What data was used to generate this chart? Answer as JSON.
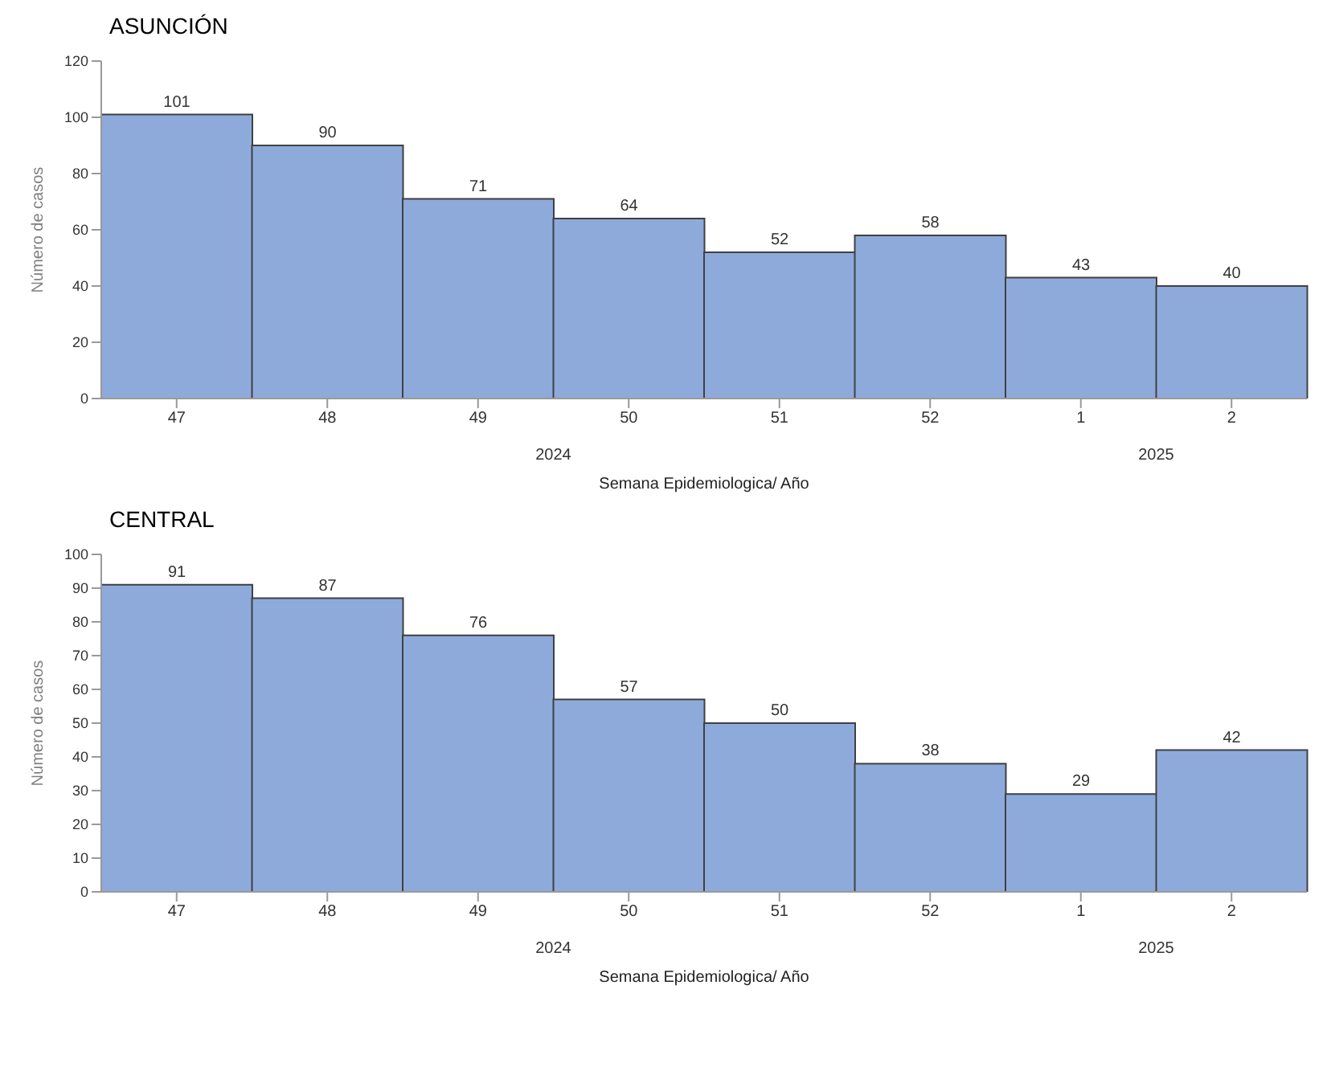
{
  "chart_data": [
    {
      "type": "bar",
      "title": "ASUNCIÓN",
      "xlabel": "Semana Epidemiologica/ Año",
      "ylabel": "Número de casos",
      "categories": [
        "47",
        "48",
        "49",
        "50",
        "51",
        "52",
        "1",
        "2"
      ],
      "values": [
        101,
        90,
        71,
        64,
        52,
        58,
        43,
        40
      ],
      "color": "#8eaadb",
      "ylim": [
        0,
        120
      ],
      "yticks": [
        0,
        20,
        40,
        60,
        80,
        100,
        120
      ],
      "grid": false,
      "legend": false,
      "data_labels": true,
      "annotations": [
        "2024",
        "2025"
      ]
    },
    {
      "type": "bar",
      "title": "CENTRAL",
      "xlabel": "Semana Epidemiologica/ Año",
      "ylabel": "Número de casos",
      "categories": [
        "47",
        "48",
        "49",
        "50",
        "51",
        "52",
        "1",
        "2"
      ],
      "values": [
        91,
        87,
        76,
        57,
        50,
        38,
        29,
        42
      ],
      "color": "#8eaadb",
      "ylim": [
        0,
        100
      ],
      "yticks": [
        0,
        10,
        20,
        30,
        40,
        50,
        60,
        70,
        80,
        90,
        100
      ],
      "grid": false,
      "legend": false,
      "data_labels": true,
      "annotations": [
        "2024",
        "2025"
      ]
    }
  ]
}
